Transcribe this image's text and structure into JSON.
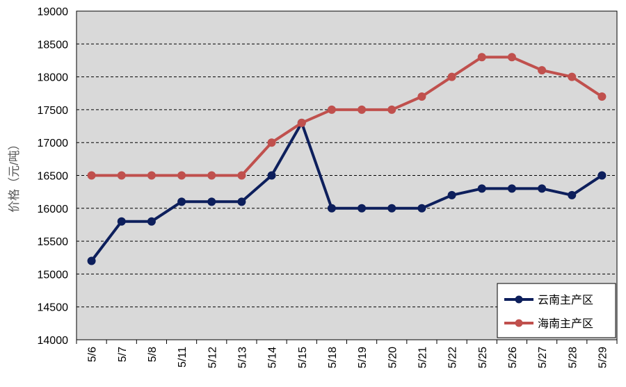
{
  "chart_data": {
    "type": "line",
    "ylabel": "价格（元/吨）",
    "categories": [
      "5/6",
      "5/7",
      "5/8",
      "5/11",
      "5/12",
      "5/13",
      "5/14",
      "5/15",
      "5/18",
      "5/19",
      "5/20",
      "5/21",
      "5/22",
      "5/25",
      "5/26",
      "5/27",
      "5/28",
      "5/29"
    ],
    "ylim": [
      14000,
      19000
    ],
    "ytick_step": 500,
    "grid": true,
    "legend_position": "bottom-right",
    "series": [
      {
        "name": "云南主产区",
        "color": "#0d1f5c",
        "values": [
          15200,
          15800,
          15800,
          16100,
          16100,
          16100,
          16500,
          17300,
          16000,
          16000,
          16000,
          16000,
          16200,
          16300,
          16300,
          16300,
          16200,
          16500
        ]
      },
      {
        "name": "海南主产区",
        "color": "#c0504d",
        "values": [
          16500,
          16500,
          16500,
          16500,
          16500,
          16500,
          17000,
          17300,
          17500,
          17500,
          17500,
          17700,
          18000,
          18300,
          18300,
          18100,
          18000,
          17700
        ]
      }
    ]
  },
  "colors": {
    "plot_background": "#d9d9d9",
    "gridline": "#000000"
  }
}
